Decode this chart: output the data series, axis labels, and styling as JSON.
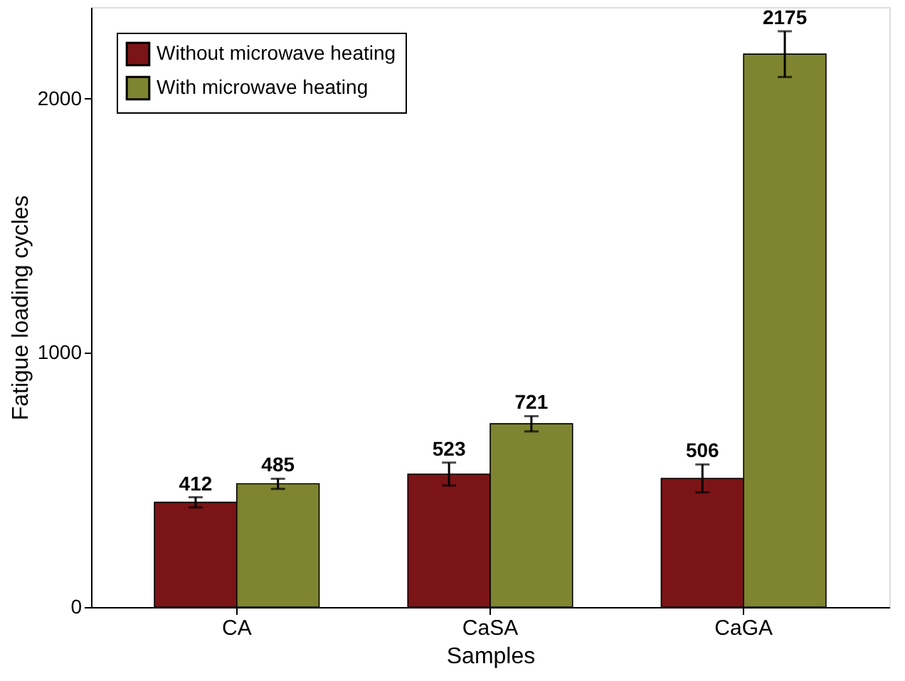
{
  "chart_data": {
    "type": "bar",
    "xlabel": "Samples",
    "ylabel": "Fatigue loading cycles",
    "categories": [
      "CA",
      "CaSA",
      "CaGA"
    ],
    "series": [
      {
        "name": "Without microwave heating",
        "color": "#7b1416",
        "values": [
          412,
          523,
          506
        ],
        "errors": [
          20,
          45,
          55
        ]
      },
      {
        "name": "With microwave heating",
        "color": "#7f8430",
        "values": [
          485,
          721,
          2175
        ],
        "errors": [
          20,
          30,
          90
        ]
      }
    ],
    "ylim": [
      0,
      2360
    ],
    "yticks": [
      0,
      1000,
      2000
    ],
    "data_labels": true,
    "legend": "top left",
    "grid": false
  }
}
